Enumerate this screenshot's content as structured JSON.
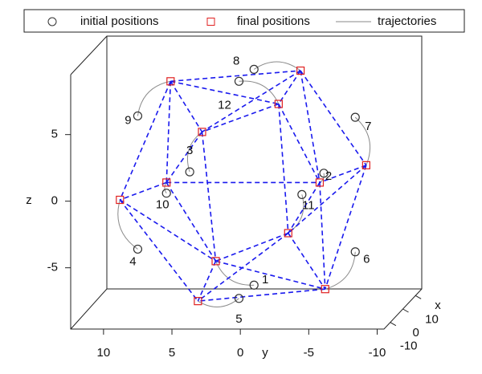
{
  "chart_data": {
    "type": "scatter3d",
    "xlabel": "x",
    "ylabel": "y",
    "zlabel": "z",
    "xlim": [
      -15,
      15
    ],
    "ylim": [
      12.4,
      -10.5
    ],
    "zlim": [
      -9.6,
      9.5
    ],
    "xticks": [
      -10,
      0,
      10
    ],
    "yticks": [
      10,
      5,
      0,
      -5,
      -10
    ],
    "zticks": [
      -5,
      0,
      5
    ],
    "point_labels": [
      "1",
      "2",
      "3",
      "4",
      "5",
      "6",
      "7",
      "8",
      "9",
      "10",
      "11",
      "12"
    ],
    "series": [
      {
        "name": "initial positions",
        "color": "#333333",
        "marker": "circle",
        "y": [
          -1.0,
          -6.1,
          3.7,
          7.5,
          0.1,
          -8.4,
          -8.4,
          -1.0,
          7.5,
          5.4,
          -4.5,
          0.1
        ],
        "z": [
          -6.3,
          2.1,
          2.2,
          -3.6,
          -7.3,
          -3.8,
          6.3,
          9.9,
          6.4,
          0.6,
          0.5,
          9.0
        ]
      },
      {
        "name": "final positions",
        "color": "#e02020",
        "marker": "square",
        "y": [
          1.8,
          -5.8,
          2.8,
          8.8,
          3.1,
          -6.2,
          -9.2,
          -4.4,
          5.1,
          5.4,
          -3.5,
          -2.8
        ],
        "z": [
          -4.5,
          1.4,
          5.2,
          0.1,
          -7.5,
          -6.6,
          2.7,
          9.8,
          9.0,
          1.4,
          -2.4,
          7.3
        ]
      },
      {
        "name": "trajectories",
        "color": "#8a8a8a",
        "marker": "line"
      }
    ],
    "edge_color": "#1a1aee",
    "edges": [
      [
        8,
        7
      ],
      [
        8,
        11
      ],
      [
        8,
        2
      ],
      [
        8,
        9
      ],
      [
        8,
        3
      ],
      [
        7,
        11
      ],
      [
        7,
        6
      ],
      [
        7,
        1
      ],
      [
        7,
        2
      ],
      [
        11,
        2
      ],
      [
        11,
        1
      ],
      [
        11,
        10
      ],
      [
        2,
        9
      ],
      [
        2,
        0
      ],
      [
        6,
        1
      ],
      [
        6,
        5
      ],
      [
        1,
        10
      ],
      [
        1,
        5
      ],
      [
        9,
        3
      ],
      [
        9,
        0
      ],
      [
        9,
        1
      ],
      [
        3,
        0
      ],
      [
        3,
        4
      ],
      [
        10,
        0
      ],
      [
        10,
        5
      ],
      [
        10,
        4
      ],
      [
        0,
        4
      ],
      [
        5,
        4
      ],
      [
        0,
        5
      ],
      [
        6,
        10
      ]
    ]
  }
}
